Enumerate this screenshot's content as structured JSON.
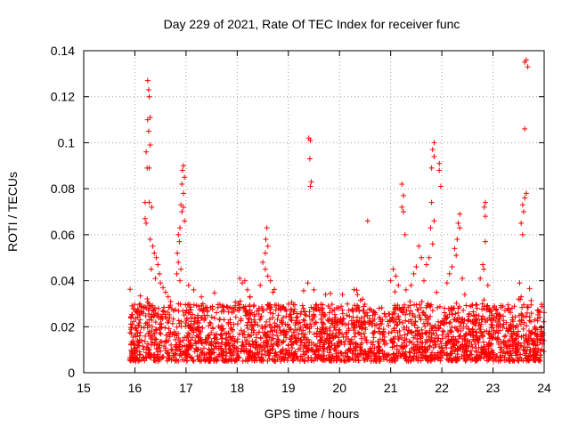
{
  "chart_data": {
    "type": "scatter",
    "title": "Day 229 of 2021, Rate Of TEC Index for receiver func",
    "xlabel": "GPS time / hours",
    "ylabel": "ROTI / TECUs",
    "xlim": [
      15,
      24
    ],
    "ylim": [
      0,
      0.14
    ],
    "xticks": [
      "15",
      "16",
      "17",
      "18",
      "19",
      "20",
      "21",
      "22",
      "23",
      "24"
    ],
    "yticks": [
      "0",
      "0.02",
      "0.04",
      "0.06",
      "0.08",
      "0.1",
      "0.12",
      "0.14"
    ],
    "grid": true,
    "marker": "+",
    "series": [
      {
        "name": "ROTI",
        "color": "#ff0000",
        "x_range": [
          15.9,
          24.0
        ],
        "dense_band": [
          0.005,
          0.03
        ],
        "note": "thousands of points, dense band plus scattered spikes; representative points listed",
        "points": [
          [
            16.25,
            0.127
          ],
          [
            16.27,
            0.123
          ],
          [
            16.28,
            0.12
          ],
          [
            16.3,
            0.111
          ],
          [
            16.25,
            0.11
          ],
          [
            16.27,
            0.105
          ],
          [
            16.3,
            0.099
          ],
          [
            16.22,
            0.096
          ],
          [
            16.24,
            0.089
          ],
          [
            16.28,
            0.089
          ],
          [
            16.2,
            0.074
          ],
          [
            16.28,
            0.074
          ],
          [
            16.33,
            0.072
          ],
          [
            16.2,
            0.067
          ],
          [
            16.22,
            0.065
          ],
          [
            16.3,
            0.058
          ],
          [
            16.35,
            0.055
          ],
          [
            16.38,
            0.052
          ],
          [
            16.42,
            0.05
          ],
          [
            16.45,
            0.047
          ],
          [
            16.32,
            0.045
          ],
          [
            16.48,
            0.043
          ],
          [
            16.4,
            0.041
          ],
          [
            16.5,
            0.039
          ],
          [
            16.55,
            0.037
          ],
          [
            16.6,
            0.035
          ],
          [
            16.65,
            0.033
          ],
          [
            16.7,
            0.031
          ],
          [
            16.95,
            0.09
          ],
          [
            16.93,
            0.088
          ],
          [
            16.97,
            0.085
          ],
          [
            16.92,
            0.082
          ],
          [
            16.95,
            0.078
          ],
          [
            16.9,
            0.073
          ],
          [
            16.95,
            0.072
          ],
          [
            16.92,
            0.07
          ],
          [
            16.97,
            0.066
          ],
          [
            16.88,
            0.063
          ],
          [
            16.85,
            0.06
          ],
          [
            16.87,
            0.057
          ],
          [
            16.83,
            0.052
          ],
          [
            16.85,
            0.048
          ],
          [
            16.9,
            0.045
          ],
          [
            16.82,
            0.043
          ],
          [
            16.88,
            0.04
          ],
          [
            17.05,
            0.038
          ],
          [
            17.15,
            0.036
          ],
          [
            18.05,
            0.041
          ],
          [
            18.1,
            0.039
          ],
          [
            18.15,
            0.04
          ],
          [
            18.2,
            0.036
          ],
          [
            18.25,
            0.033
          ],
          [
            18.58,
            0.063
          ],
          [
            18.56,
            0.058
          ],
          [
            18.6,
            0.055
          ],
          [
            18.55,
            0.052
          ],
          [
            18.5,
            0.048
          ],
          [
            18.55,
            0.045
          ],
          [
            18.6,
            0.042
          ],
          [
            18.65,
            0.04
          ],
          [
            18.45,
            0.038
          ],
          [
            18.7,
            0.035
          ],
          [
            19.4,
            0.102
          ],
          [
            19.43,
            0.101
          ],
          [
            19.42,
            0.093
          ],
          [
            19.45,
            0.083
          ],
          [
            19.43,
            0.081
          ],
          [
            19.38,
            0.039
          ],
          [
            19.5,
            0.036
          ],
          [
            20.55,
            0.066
          ],
          [
            20.35,
            0.034
          ],
          [
            20.45,
            0.032
          ],
          [
            21.22,
            0.082
          ],
          [
            21.25,
            0.077
          ],
          [
            21.22,
            0.072
          ],
          [
            21.25,
            0.07
          ],
          [
            21.28,
            0.06
          ],
          [
            21.05,
            0.045
          ],
          [
            21.1,
            0.042
          ],
          [
            21.0,
            0.04
          ],
          [
            21.15,
            0.038
          ],
          [
            21.3,
            0.036
          ],
          [
            21.85,
            0.1
          ],
          [
            21.82,
            0.097
          ],
          [
            21.85,
            0.094
          ],
          [
            21.95,
            0.091
          ],
          [
            21.95,
            0.088
          ],
          [
            21.8,
            0.089
          ],
          [
            21.98,
            0.081
          ],
          [
            21.8,
            0.074
          ],
          [
            21.85,
            0.066
          ],
          [
            21.78,
            0.063
          ],
          [
            21.82,
            0.056
          ],
          [
            21.75,
            0.05
          ],
          [
            21.7,
            0.047
          ],
          [
            21.55,
            0.055
          ],
          [
            21.6,
            0.05
          ],
          [
            21.5,
            0.046
          ],
          [
            21.45,
            0.043
          ],
          [
            21.65,
            0.04
          ],
          [
            21.4,
            0.038
          ],
          [
            22.35,
            0.069
          ],
          [
            22.32,
            0.065
          ],
          [
            22.35,
            0.063
          ],
          [
            22.3,
            0.058
          ],
          [
            22.25,
            0.054
          ],
          [
            22.28,
            0.051
          ],
          [
            22.2,
            0.046
          ],
          [
            22.15,
            0.043
          ],
          [
            22.4,
            0.041
          ],
          [
            22.1,
            0.039
          ],
          [
            22.85,
            0.074
          ],
          [
            22.83,
            0.072
          ],
          [
            22.85,
            0.068
          ],
          [
            22.85,
            0.057
          ],
          [
            22.8,
            0.047
          ],
          [
            22.82,
            0.045
          ],
          [
            22.75,
            0.041
          ],
          [
            22.9,
            0.038
          ],
          [
            23.65,
            0.136
          ],
          [
            23.62,
            0.135
          ],
          [
            23.68,
            0.133
          ],
          [
            23.62,
            0.106
          ],
          [
            23.65,
            0.078
          ],
          [
            23.62,
            0.076
          ],
          [
            23.58,
            0.073
          ],
          [
            23.6,
            0.07
          ],
          [
            23.55,
            0.065
          ],
          [
            23.58,
            0.06
          ],
          [
            23.52,
            0.039
          ],
          [
            23.55,
            0.033
          ],
          [
            23.5,
            0.032
          ],
          [
            23.88,
            0.027
          ]
        ]
      }
    ]
  }
}
